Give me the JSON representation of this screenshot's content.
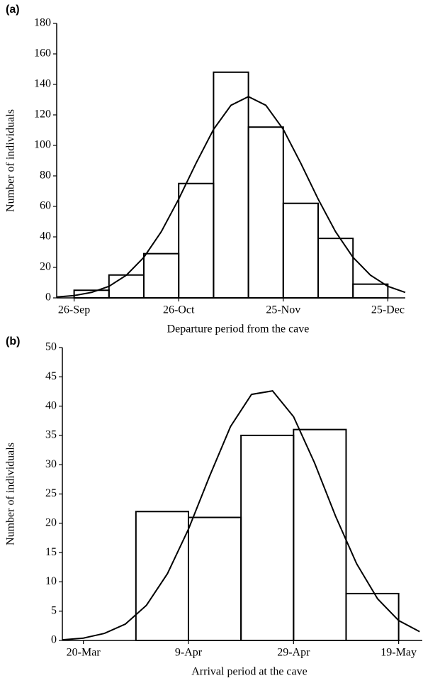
{
  "chart_data": [
    {
      "type": "histogram",
      "panel_label": "(a)",
      "x_label": "Departure period from the cave",
      "y_label": "Number of individuals",
      "bins": [
        0,
        10,
        20,
        30,
        40,
        50,
        60,
        70,
        80,
        90
      ],
      "values": [
        5,
        15,
        29,
        75,
        148,
        112,
        62,
        39,
        9
      ],
      "fit": {
        "x": [
          -5,
          0,
          5,
          10,
          15,
          20,
          25,
          30,
          35,
          40,
          45,
          50,
          55,
          60,
          65,
          70,
          75,
          80,
          85,
          90,
          95
        ],
        "values": [
          0.6,
          1.5,
          3.6,
          7.6,
          14.9,
          26.6,
          43.4,
          64.8,
          88.4,
          110.5,
          126.3,
          132,
          126.3,
          110.5,
          88.4,
          64.8,
          43.4,
          26.6,
          14.9,
          7.6,
          3.6
        ]
      },
      "xlim": [
        -5,
        95
      ],
      "xticks": [
        {
          "value": 0,
          "label": "26-Sep"
        },
        {
          "value": 30,
          "label": "26-Oct"
        },
        {
          "value": 60,
          "label": "25-Nov"
        },
        {
          "value": 90,
          "label": "25-Dec"
        }
      ],
      "ylim": [
        0,
        180
      ],
      "yticks": [
        0,
        20,
        40,
        60,
        80,
        100,
        120,
        140,
        160,
        180
      ],
      "color": "#000000"
    },
    {
      "type": "histogram",
      "panel_label": "(b)",
      "x_label": "Arrival period at the cave",
      "y_label": "Number of individuals",
      "bins": [
        10,
        20,
        30,
        40,
        50,
        60
      ],
      "values": [
        22,
        21,
        35,
        36,
        8
      ],
      "fit": {
        "x": [
          -4,
          0,
          4,
          8,
          12,
          16,
          20,
          24,
          28,
          32,
          36,
          40,
          44,
          48,
          52,
          56,
          60,
          64
        ],
        "values": [
          0.1,
          0.4,
          1.2,
          2.8,
          6.0,
          11.4,
          19.0,
          28.0,
          36.5,
          42.0,
          42.6,
          38.2,
          30.3,
          21.2,
          13.1,
          7.1,
          3.4,
          1.5
        ]
      },
      "xlim": [
        -4,
        64.5
      ],
      "xticks": [
        {
          "value": 0,
          "label": "20-Mar"
        },
        {
          "value": 20,
          "label": "9-Apr"
        },
        {
          "value": 40,
          "label": "29-Apr"
        },
        {
          "value": 60,
          "label": "19-May"
        }
      ],
      "ylim": [
        0,
        50
      ],
      "yticks": [
        0,
        5,
        10,
        15,
        20,
        25,
        30,
        35,
        40,
        45,
        50
      ],
      "color": "#000000"
    }
  ]
}
